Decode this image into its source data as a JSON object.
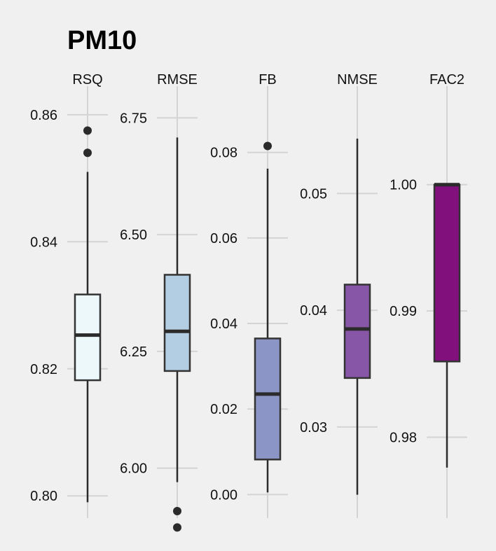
{
  "chart_data": {
    "type": "box",
    "title": "PM10",
    "background": "#f0f0f0",
    "panels": [
      {
        "name": "RSQ",
        "color": "#edf8fb",
        "ylim": [
          0.7965,
          0.8645
        ],
        "ticks": [
          0.8,
          0.82,
          0.84,
          0.86
        ],
        "tick_labels": [
          "0.80",
          "0.82",
          "0.84",
          "0.86"
        ],
        "whisker_low": 0.799,
        "q1": 0.8182,
        "median": 0.8253,
        "q3": 0.8317,
        "whisker_high": 0.851,
        "outliers": [
          0.8575,
          0.854
        ]
      },
      {
        "name": "RMSE",
        "color": "#b3cde3",
        "ylim": [
          5.893,
          6.818
        ],
        "ticks": [
          6.0,
          6.25,
          6.5,
          6.75
        ],
        "tick_labels": [
          "6.00",
          "6.25",
          "6.50",
          "6.75"
        ],
        "whisker_low": 5.97,
        "q1": 6.208,
        "median": 6.293,
        "q3": 6.414,
        "whisker_high": 6.708,
        "outliers": [
          5.908,
          5.873
        ]
      },
      {
        "name": "FB",
        "color": "#8c96c6",
        "ylim": [
          -0.0055,
          0.0955
        ],
        "ticks": [
          0.0,
          0.02,
          0.04,
          0.06,
          0.08
        ],
        "tick_labels": [
          "0.00",
          "0.02",
          "0.04",
          "0.06",
          "0.08"
        ],
        "whisker_low": 0.0005,
        "q1": 0.0082,
        "median": 0.0235,
        "q3": 0.0365,
        "whisker_high": 0.0762,
        "outliers": [
          0.0815
        ]
      },
      {
        "name": "NMSE",
        "color": "#8856a7",
        "ylim": [
          0.0222,
          0.0592
        ],
        "ticks": [
          0.03,
          0.04,
          0.05
        ],
        "tick_labels": [
          "0.03",
          "0.04",
          "0.05"
        ],
        "whisker_low": 0.0242,
        "q1": 0.0342,
        "median": 0.0384,
        "q3": 0.0422,
        "whisker_high": 0.0547,
        "outliers": []
      },
      {
        "name": "FAC2",
        "color": "#810f7c",
        "ylim": [
          0.9736,
          1.0078
        ],
        "ticks": [
          0.98,
          0.99,
          1.0
        ],
        "tick_labels": [
          "0.98",
          "0.99",
          "1.00"
        ],
        "whisker_low": 0.9776,
        "q1": 0.986,
        "median": 1.0,
        "q3": 1.0,
        "whisker_high": 1.0,
        "outliers": []
      }
    ]
  }
}
